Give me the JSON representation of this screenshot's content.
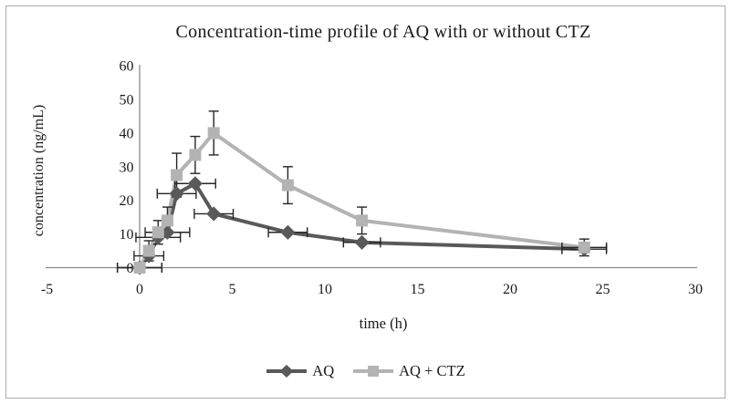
{
  "window": {
    "background": "#ffffff",
    "frame_border_color": "#adadad"
  },
  "chart_data": {
    "type": "line",
    "title": "Concentration-time profile of AQ with or without CTZ",
    "xlabel": "time (h)",
    "ylabel": "concentration (ng/mL)",
    "xlim": [
      -5,
      30
    ],
    "ylim": [
      0,
      60
    ],
    "xticks": [
      -5,
      0,
      5,
      10,
      15,
      20,
      25,
      30
    ],
    "yticks": [
      0,
      10,
      20,
      30,
      40,
      50,
      60
    ],
    "grid": false,
    "legend_position": "bottom-center",
    "axis_color": "#8c8c8c",
    "error_bar_color": "#262626",
    "series": [
      {
        "name": "AQ",
        "color": "#595959",
        "marker": "diamond",
        "x": [
          0,
          0.5,
          1,
          1.5,
          2,
          3,
          4,
          8,
          12,
          24
        ],
        "y": [
          0,
          3.5,
          9,
          10.5,
          22,
          25,
          16,
          10.5,
          7.5,
          5.5
        ],
        "x_err": [
          1.2,
          0.8,
          1.2,
          1.2,
          1.05,
          1.1,
          1.05,
          1.05,
          1.0,
          1.2
        ],
        "y_err": [
          0,
          0,
          0,
          0,
          0,
          0,
          0,
          0,
          0,
          0
        ]
      },
      {
        "name": "AQ + CTZ",
        "color": "#b3b3b3",
        "marker": "square",
        "x": [
          0,
          0.5,
          1,
          1.5,
          2,
          3,
          4,
          8,
          12,
          24
        ],
        "y": [
          0,
          5,
          10.5,
          14,
          27.5,
          33.5,
          40,
          24.5,
          14,
          6
        ],
        "x_err": [
          1.2,
          0,
          0,
          0,
          0,
          0,
          0,
          0,
          0,
          1.2
        ],
        "y_err": [
          0,
          3,
          3.5,
          4,
          6.5,
          5.5,
          6.5,
          5.5,
          4,
          2.5
        ]
      }
    ]
  }
}
